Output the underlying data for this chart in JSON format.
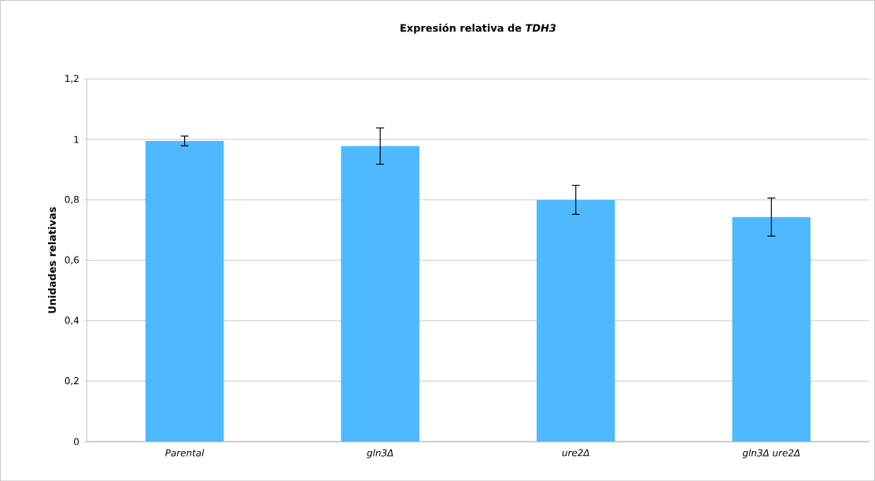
{
  "chart_data": {
    "type": "bar",
    "title": "Expresión relativa de *TDH3*",
    "ylabel": "Unidades relativas",
    "categories": [
      "Parental",
      "gln3Δ",
      "ure2Δ",
      "gln3Δ ure2Δ"
    ],
    "values": [
      0.995,
      0.978,
      0.8,
      0.743
    ],
    "errors": [
      0.016,
      0.06,
      0.048,
      0.063
    ],
    "color": "#4fb9ff",
    "ylim": [
      0,
      1.2
    ],
    "yticks": [
      0,
      {
        "value": 0.2,
        "label": "0,2"
      },
      {
        "value": 0.4,
        "label": "0,4"
      },
      {
        "value": 0.6,
        "label": "0,6"
      },
      {
        "value": 0.8,
        "label": "0,8"
      },
      1,
      {
        "value": 1.2,
        "label": "1,2"
      }
    ],
    "grid": "y"
  }
}
